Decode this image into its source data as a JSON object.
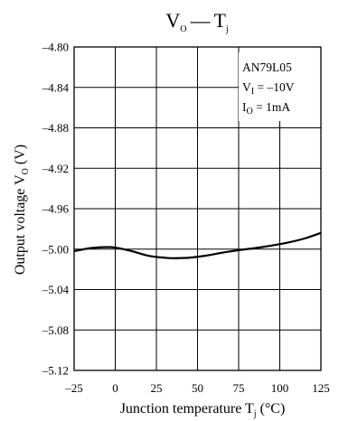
{
  "chart_data": {
    "type": "line",
    "title": {
      "main": "V",
      "main_sub": "O",
      "dash": "—",
      "var": "T",
      "var_sub": "j"
    },
    "xlabel": {
      "text": "Junction temperature  T",
      "sub": "j",
      "unit": " (°C)"
    },
    "ylabel": {
      "text": "Output voltage  V",
      "sub": "O",
      "unit": " (V)"
    },
    "xlim": [
      -25,
      125
    ],
    "ylim": [
      -4.8,
      -5.12
    ],
    "x_ticks": [
      -25,
      0,
      25,
      50,
      75,
      100,
      125
    ],
    "x_tick_labels": [
      "–25",
      "0",
      "25",
      "50",
      "75",
      "100",
      "125"
    ],
    "y_ticks": [
      -5.12,
      -5.08,
      -5.04,
      -5.0,
      -4.96,
      -4.92,
      -4.88,
      -4.84,
      -4.8
    ],
    "y_tick_labels": [
      "–5.12",
      "–5.08",
      "–5.04",
      "–5.00",
      "–4.96",
      "–4.92",
      "–4.88",
      "–4.84",
      "–4.80"
    ],
    "grid": true,
    "annotation": {
      "line1": "AN79L05",
      "line2": {
        "text": "V",
        "sub": "I",
        "value": " = –10V"
      },
      "line3": {
        "text": "I",
        "sub": "O",
        "value": " = 1mA"
      }
    },
    "series": [
      {
        "x": [
          -25,
          -15,
          -5,
          0,
          10,
          20,
          30,
          35,
          45,
          55,
          65,
          75,
          85,
          95,
          105,
          115,
          125
        ],
        "y": [
          -5.002,
          -4.999,
          -4.998,
          -4.9985,
          -5.002,
          -5.0065,
          -5.0085,
          -5.009,
          -5.0085,
          -5.0065,
          -5.0035,
          -5.001,
          -4.999,
          -4.9965,
          -4.9935,
          -4.9895,
          -4.984
        ]
      }
    ]
  }
}
